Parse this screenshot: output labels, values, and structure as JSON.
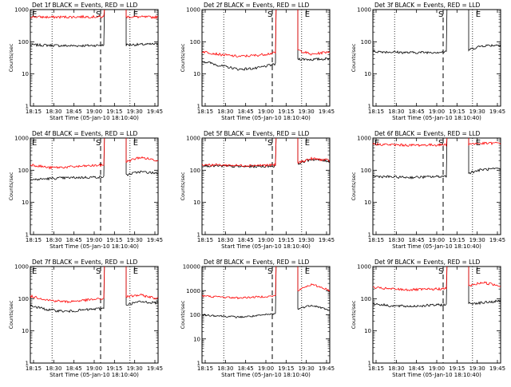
{
  "common": {
    "x_tick_labels": [
      "18:15",
      "18:30",
      "18:45",
      "19:00",
      "19:15",
      "19:30",
      "19:45"
    ],
    "y_tick_labels": [
      "1",
      "10",
      "100",
      "1000",
      "10000"
    ],
    "y_scale": "log",
    "ylabel": "Counts/sec",
    "xlabel": "Start Time (05-Jan-10 18:10:40)",
    "colors": {
      "events": "#000000",
      "lld": "#ff0000"
    }
  },
  "chart_data": [
    {
      "type": "line",
      "title": "Det 1f BLACK = Events, RED = LLD",
      "ylim": [
        1,
        1000
      ],
      "markers": [
        "E",
        "S",
        "E"
      ],
      "series": [
        {
          "name": "Events",
          "values": [
            80,
            78,
            75,
            76,
            78,
            80,
            82,
            85
          ]
        },
        {
          "name": "LLD",
          "values": [
            600,
            580,
            590,
            600,
            595,
            600,
            590,
            580
          ]
        }
      ]
    },
    {
      "type": "line",
      "title": "Det 2f BLACK = Events, RED = LLD",
      "ylim": [
        1,
        1000
      ],
      "markers": [
        "",
        "S",
        "E"
      ],
      "series": [
        {
          "name": "Events",
          "values": [
            25,
            18,
            14,
            15,
            20,
            30,
            28,
            30
          ]
        },
        {
          "name": "LLD",
          "values": [
            50,
            40,
            35,
            38,
            45,
            60,
            40,
            50
          ]
        }
      ]
    },
    {
      "type": "line",
      "title": "Det 3f BLACK = Events, RED = LLD",
      "ylim": [
        1,
        1000
      ],
      "markers": [
        "",
        "S",
        "E"
      ],
      "series": [
        {
          "name": "Events",
          "values": [
            50,
            48,
            46,
            47,
            48,
            50,
            75,
            80
          ]
        }
      ]
    },
    {
      "type": "line",
      "title": "Det 4f BLACK = Events, RED = LLD",
      "ylim": [
        1,
        1000
      ],
      "markers": [
        "E",
        "S",
        "E"
      ],
      "series": [
        {
          "name": "Events",
          "values": [
            50,
            55,
            58,
            60,
            62,
            65,
            90,
            80
          ]
        },
        {
          "name": "LLD",
          "values": [
            150,
            120,
            125,
            135,
            145,
            160,
            250,
            200
          ]
        }
      ]
    },
    {
      "type": "line",
      "title": "Det 5f BLACK = Events, RED = LLD",
      "ylim": [
        1,
        1000
      ],
      "markers": [
        "",
        "S",
        "E"
      ],
      "series": [
        {
          "name": "Events",
          "values": [
            140,
            135,
            130,
            132,
            135,
            140,
            220,
            190
          ]
        },
        {
          "name": "LLD",
          "values": [
            150,
            145,
            140,
            142,
            145,
            150,
            230,
            200
          ]
        }
      ]
    },
    {
      "type": "line",
      "title": "Det 6f BLACK = Events, RED = LLD",
      "ylim": [
        1,
        1000
      ],
      "markers": [
        "E",
        "S",
        "E"
      ],
      "series": [
        {
          "name": "Events",
          "values": [
            65,
            62,
            60,
            62,
            65,
            75,
            105,
            110
          ]
        },
        {
          "name": "LLD",
          "values": [
            650,
            620,
            600,
            610,
            620,
            650,
            680,
            700
          ]
        }
      ]
    },
    {
      "type": "line",
      "title": "Det 7f BLACK = Events, RED = LLD",
      "ylim": [
        1,
        1000
      ],
      "markers": [
        "E",
        "S",
        "E"
      ],
      "series": [
        {
          "name": "Events",
          "values": [
            60,
            45,
            40,
            45,
            50,
            60,
            80,
            75
          ]
        },
        {
          "name": "LLD",
          "values": [
            120,
            90,
            80,
            90,
            100,
            110,
            130,
            100
          ]
        }
      ]
    },
    {
      "type": "line",
      "title": "Det 8f BLACK = Events, RED = LLD",
      "ylim": [
        1,
        10000
      ],
      "markers": [
        "",
        "S",
        "E"
      ],
      "series": [
        {
          "name": "Events",
          "values": [
            100,
            90,
            80,
            90,
            110,
            150,
            250,
            150
          ]
        },
        {
          "name": "LLD",
          "values": [
            600,
            550,
            500,
            550,
            600,
            700,
            1800,
            1000
          ]
        }
      ]
    },
    {
      "type": "line",
      "title": "Det 9f BLACK = Events, RED = LLD",
      "ylim": [
        1,
        1000
      ],
      "markers": [
        "",
        "S",
        "E"
      ],
      "series": [
        {
          "name": "Events",
          "values": [
            70,
            60,
            58,
            62,
            65,
            70,
            75,
            85
          ]
        },
        {
          "name": "LLD",
          "values": [
            220,
            200,
            190,
            195,
            205,
            220,
            320,
            250
          ]
        }
      ]
    }
  ]
}
